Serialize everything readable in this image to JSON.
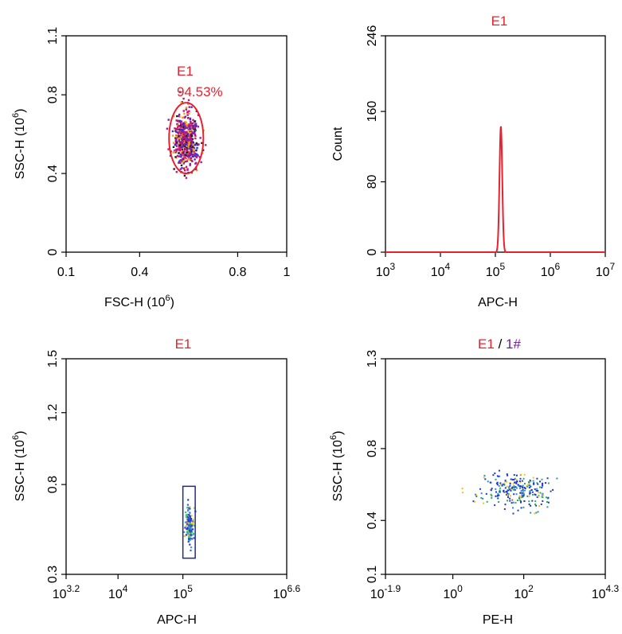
{
  "colors": {
    "gate": "#e8212e",
    "histogram": "#e8212e",
    "rect_gate": "#1f2a8c",
    "title_red": "#e8212e",
    "title_purple": "#6a1b9a",
    "dot_blue": "#1d35d8",
    "dot_magenta": "#b0197a"
  },
  "chart_data": [
    {
      "type": "scatter",
      "title": "",
      "xlabel": "FSC-H  (10^6)",
      "xlabel_base": "FSC-H  (10",
      "xlabel_exp": "6",
      "xlabel_tail": ")",
      "ylabel": "SSC-H  (10^6)",
      "ylabel_base": "SSC-H  (10",
      "ylabel_exp": "6",
      "ylabel_tail": ")",
      "xlim": [
        0.1,
        1.0
      ],
      "ylim": [
        0.0,
        1.1
      ],
      "x_ticks": [
        {
          "value": 0.1,
          "label": "0.1"
        },
        {
          "value": 0.4,
          "label": "0.4"
        },
        {
          "value": 0.8,
          "label": "0.8"
        },
        {
          "value": 1.0,
          "label": "1"
        }
      ],
      "y_ticks": [
        {
          "value": 0.0,
          "label": "0"
        },
        {
          "value": 0.4,
          "label": "0.4"
        },
        {
          "value": 0.8,
          "label": "0.8"
        },
        {
          "value": 1.1,
          "label": "1.1"
        }
      ],
      "gate": {
        "name": "E1",
        "percent": "94.53%",
        "shape": "ellipse",
        "x_range": [
          0.52,
          0.66
        ],
        "y_range": [
          0.4,
          0.76
        ]
      },
      "population": {
        "center": [
          0.59,
          0.57
        ],
        "spread": [
          0.025,
          0.07
        ]
      }
    },
    {
      "type": "histogram",
      "title": "E1",
      "xlabel": "APC-H",
      "ylabel": "Count",
      "x_scale": "log",
      "xlim_exp": [
        3,
        7
      ],
      "ylim": [
        0,
        246
      ],
      "x_ticks": [
        {
          "exp": 3,
          "label": "10",
          "sup": "3"
        },
        {
          "exp": 4,
          "label": "10",
          "sup": "4"
        },
        {
          "exp": 5,
          "label": "10",
          "sup": "5"
        },
        {
          "exp": 6,
          "label": "10",
          "sup": "6"
        },
        {
          "exp": 7,
          "label": "10",
          "sup": "7"
        }
      ],
      "y_ticks": [
        {
          "value": 0,
          "label": "0"
        },
        {
          "value": 80,
          "label": "80"
        },
        {
          "value": 160,
          "label": "160"
        },
        {
          "value": 246,
          "label": "246"
        }
      ],
      "peak": {
        "center_exp": 5.1,
        "height": 143,
        "width_exp": 0.025
      }
    },
    {
      "type": "scatter",
      "title": "E1",
      "xlabel": "APC-H",
      "ylabel": "SSC-H  (10^6)",
      "ylabel_base": "SSC-H  (10",
      "ylabel_exp": "6",
      "ylabel_tail": ")",
      "x_scale": "log",
      "xlim_exp": [
        3.2,
        6.6
      ],
      "ylim": [
        0.3,
        1.5
      ],
      "x_ticks": [
        {
          "exp": 3.2,
          "label": "10",
          "sup": "3.2"
        },
        {
          "exp": 4,
          "label": "10",
          "sup": "4"
        },
        {
          "exp": 5,
          "label": "10",
          "sup": "5"
        },
        {
          "exp": 6.6,
          "label": "10",
          "sup": "6.6"
        }
      ],
      "y_ticks": [
        {
          "value": 0.3,
          "label": "0.3"
        },
        {
          "value": 0.8,
          "label": "0.8"
        },
        {
          "value": 1.2,
          "label": "1.2"
        },
        {
          "value": 1.5,
          "label": "1.5"
        }
      ],
      "gate": {
        "shape": "rectangle",
        "x_exp_range": [
          5.0,
          5.19
        ],
        "y_range": [
          0.39,
          0.79
        ]
      },
      "population": {
        "center_exp": 5.1,
        "center_y": 0.57,
        "spread": [
          0.03,
          0.05
        ]
      }
    },
    {
      "type": "scatter",
      "title": "E1 / 1#",
      "title_part1": "E1",
      "title_sep": " / ",
      "title_part2": "1#",
      "xlabel": "PE-H",
      "ylabel": "SSC-H  (10^6)",
      "ylabel_base": "SSC-H  (10",
      "ylabel_exp": "6",
      "ylabel_tail": ")",
      "x_scale": "log",
      "xlim_exp": [
        -1.9,
        4.3
      ],
      "ylim": [
        0.1,
        1.3
      ],
      "x_ticks": [
        {
          "exp": -1.9,
          "label": "10",
          "sup": "-1.9"
        },
        {
          "exp": 0,
          "label": "10",
          "sup": "0"
        },
        {
          "exp": 2,
          "label": "10",
          "sup": "2"
        },
        {
          "exp": 4.3,
          "label": "10",
          "sup": "4.3"
        }
      ],
      "y_ticks": [
        {
          "value": 0.1,
          "label": "0.1"
        },
        {
          "value": 0.4,
          "label": "0.4"
        },
        {
          "value": 0.8,
          "label": "0.8"
        },
        {
          "value": 1.3,
          "label": "1.3"
        }
      ],
      "population": {
        "center_exp": 1.8,
        "center_y": 0.57,
        "spread": [
          0.55,
          0.05
        ]
      }
    }
  ]
}
